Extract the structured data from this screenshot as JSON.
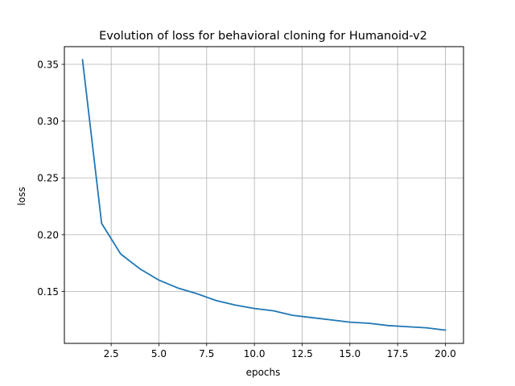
{
  "chart_data": {
    "type": "line",
    "title": "Evolution of loss for behavioral cloning for Humanoid-v2",
    "xlabel": "epochs",
    "ylabel": "loss",
    "xlim": [
      0.05,
      20.95
    ],
    "ylim": [
      0.1043,
      0.3656
    ],
    "grid": true,
    "x_ticks": [
      2.5,
      5.0,
      7.5,
      10.0,
      12.5,
      15.0,
      17.5,
      20.0
    ],
    "x_tick_labels": [
      "2.5",
      "5.0",
      "7.5",
      "10.0",
      "12.5",
      "15.0",
      "17.5",
      "20.0"
    ],
    "y_ticks": [
      0.15,
      0.2,
      0.25,
      0.3,
      0.35
    ],
    "y_tick_labels": [
      "0.15",
      "0.20",
      "0.25",
      "0.30",
      "0.35"
    ],
    "series": [
      {
        "color": "#1f77b4",
        "x": [
          1,
          2,
          3,
          4,
          5,
          6,
          7,
          8,
          9,
          10,
          11,
          12,
          13,
          14,
          15,
          16,
          17,
          18,
          19,
          20
        ],
        "values": [
          0.354,
          0.21,
          0.183,
          0.17,
          0.16,
          0.153,
          0.148,
          0.142,
          0.138,
          0.135,
          0.133,
          0.129,
          0.127,
          0.125,
          0.123,
          0.122,
          0.12,
          0.119,
          0.118,
          0.116
        ]
      }
    ]
  }
}
